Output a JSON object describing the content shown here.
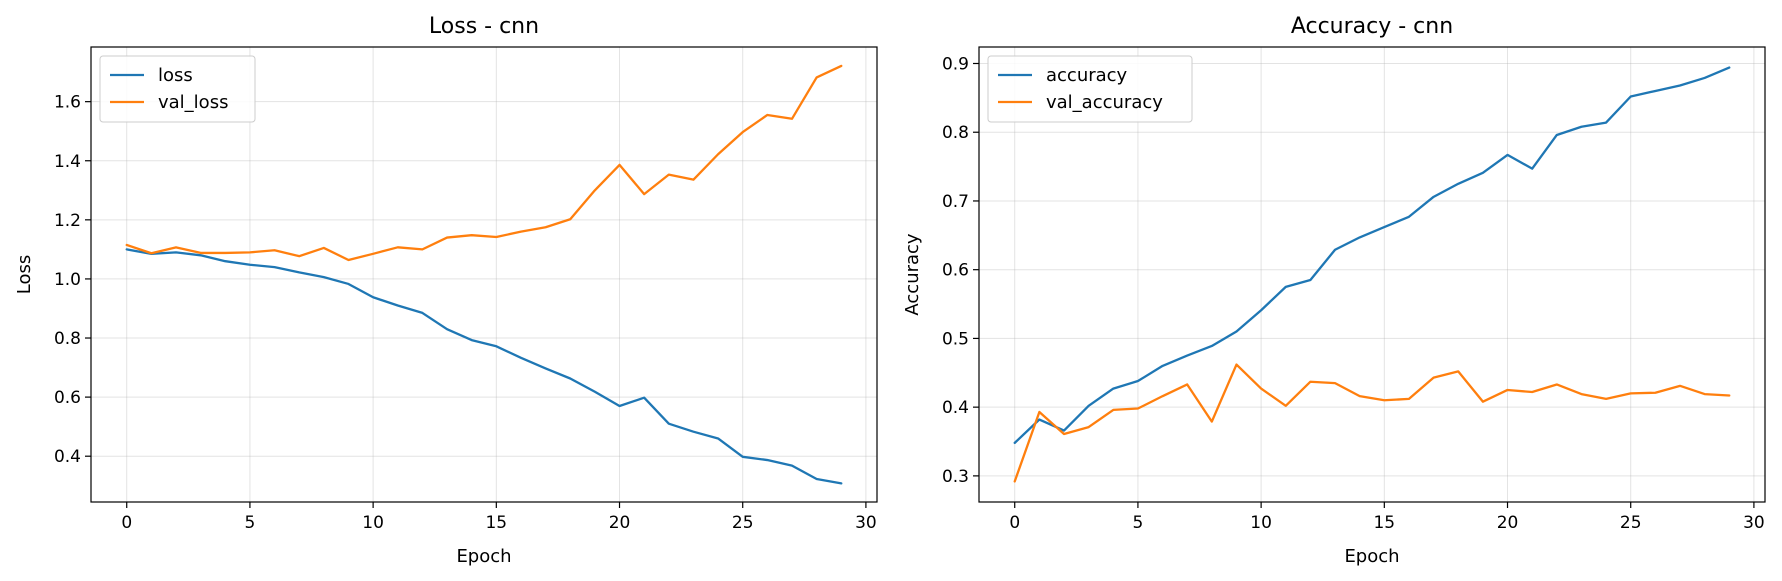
{
  "chart_data": [
    {
      "type": "line",
      "title": "Loss - cnn",
      "xlabel": "Epoch",
      "ylabel": "Loss",
      "xlim": [
        -1.45,
        30.45
      ],
      "ylim": [
        0.245,
        1.785
      ],
      "xticks": [
        0,
        5,
        10,
        15,
        20,
        25,
        30
      ],
      "yticks": [
        0.4,
        0.6,
        0.8,
        1.0,
        1.2,
        1.4,
        1.6
      ],
      "ytick_labels": [
        "0.4",
        "0.6",
        "0.8",
        "1.0",
        "1.2",
        "1.4",
        "1.6"
      ],
      "grid": true,
      "legend": "upper-left",
      "x": [
        0,
        1,
        2,
        3,
        4,
        5,
        6,
        7,
        8,
        9,
        10,
        11,
        12,
        13,
        14,
        15,
        16,
        17,
        18,
        19,
        20,
        21,
        22,
        23,
        24,
        25,
        26,
        27,
        28,
        29
      ],
      "series": [
        {
          "name": "loss",
          "color": "#1f77b4",
          "values": [
            1.1,
            1.085,
            1.09,
            1.08,
            1.06,
            1.048,
            1.04,
            1.022,
            1.006,
            0.983,
            0.938,
            0.91,
            0.885,
            0.83,
            0.793,
            0.772,
            0.733,
            0.697,
            0.663,
            0.618,
            0.57,
            0.598,
            0.51,
            0.483,
            0.46,
            0.398,
            0.387,
            0.368,
            0.323,
            0.308
          ]
        },
        {
          "name": "val_loss",
          "color": "#ff7f0e",
          "values": [
            1.115,
            1.087,
            1.107,
            1.088,
            1.088,
            1.09,
            1.097,
            1.077,
            1.105,
            1.064,
            1.085,
            1.107,
            1.1,
            1.14,
            1.148,
            1.142,
            1.16,
            1.175,
            1.202,
            1.3,
            1.386,
            1.287,
            1.353,
            1.336,
            1.422,
            1.497,
            1.555,
            1.542,
            1.682,
            1.721
          ]
        }
      ]
    },
    {
      "type": "line",
      "title": "Accuracy - cnn",
      "xlabel": "Epoch",
      "ylabel": "Accuracy",
      "xlim": [
        -1.45,
        30.45
      ],
      "ylim": [
        0.262,
        0.924
      ],
      "xticks": [
        0,
        5,
        10,
        15,
        20,
        25,
        30
      ],
      "yticks": [
        0.3,
        0.4,
        0.5,
        0.6,
        0.7,
        0.8,
        0.9
      ],
      "ytick_labels": [
        "0.3",
        "0.4",
        "0.5",
        "0.6",
        "0.7",
        "0.8",
        "0.9"
      ],
      "grid": true,
      "legend": "upper-left",
      "x": [
        0,
        1,
        2,
        3,
        4,
        5,
        6,
        7,
        8,
        9,
        10,
        11,
        12,
        13,
        14,
        15,
        16,
        17,
        18,
        19,
        20,
        21,
        22,
        23,
        24,
        25,
        26,
        27,
        28,
        29
      ],
      "series": [
        {
          "name": "accuracy",
          "color": "#1f77b4",
          "values": [
            0.348,
            0.382,
            0.366,
            0.402,
            0.427,
            0.438,
            0.46,
            0.475,
            0.489,
            0.51,
            0.541,
            0.575,
            0.585,
            0.629,
            0.647,
            0.662,
            0.677,
            0.706,
            0.725,
            0.741,
            0.767,
            0.747,
            0.796,
            0.808,
            0.814,
            0.852,
            0.86,
            0.868,
            0.879,
            0.894
          ]
        },
        {
          "name": "val_accuracy",
          "color": "#ff7f0e",
          "values": [
            0.292,
            0.393,
            0.361,
            0.371,
            0.396,
            0.398,
            0.416,
            0.433,
            0.379,
            0.462,
            0.427,
            0.402,
            0.437,
            0.435,
            0.416,
            0.41,
            0.412,
            0.443,
            0.452,
            0.408,
            0.425,
            0.422,
            0.433,
            0.419,
            0.412,
            0.42,
            0.421,
            0.431,
            0.419,
            0.417
          ]
        }
      ]
    }
  ]
}
